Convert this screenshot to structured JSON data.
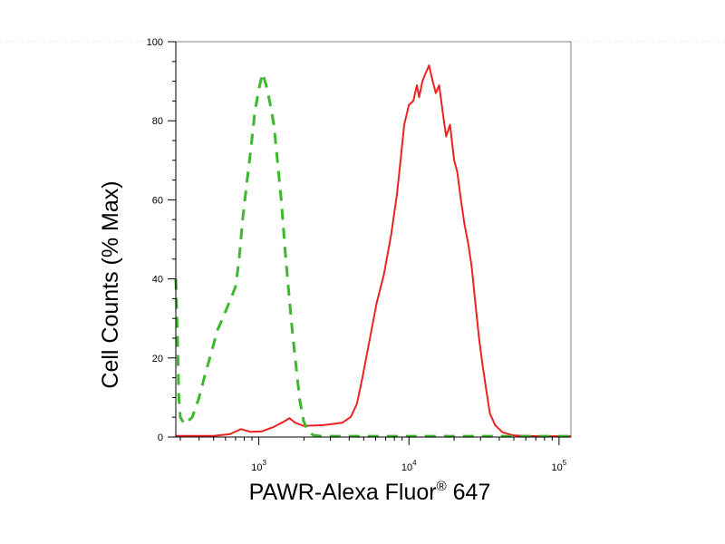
{
  "chart_data": {
    "type": "line",
    "xlabel": {
      "main": "PAWR-Alexa Fluor",
      "sup": "®",
      "tail": " 647"
    },
    "ylabel": "Cell Counts (% Max)",
    "x_scale": "log",
    "xlim": [
      280,
      120000
    ],
    "ylim": [
      0,
      100
    ],
    "y_ticks": [
      0,
      20,
      40,
      60,
      80,
      100
    ],
    "y_tick_labels": [
      "0",
      "20",
      "40",
      "60",
      "80",
      "100"
    ],
    "x_major_ticks": [
      {
        "value": 1000,
        "base": "10",
        "exp": "3"
      },
      {
        "value": 10000,
        "base": "10",
        "exp": "4"
      },
      {
        "value": 100000,
        "base": "10",
        "exp": "5"
      }
    ],
    "series": [
      {
        "color": "#ee2222",
        "style": "solid",
        "points": [
          [
            280,
            0.3
          ],
          [
            500,
            0.3
          ],
          [
            640,
            0.7
          ],
          [
            760,
            2.0
          ],
          [
            880,
            1.3
          ],
          [
            1040,
            1.4
          ],
          [
            1250,
            2.5
          ],
          [
            1470,
            3.9
          ],
          [
            1600,
            4.8
          ],
          [
            1750,
            3.6
          ],
          [
            2000,
            2.8
          ],
          [
            2700,
            3.0
          ],
          [
            3600,
            3.6
          ],
          [
            4100,
            5.1
          ],
          [
            4500,
            8.4
          ],
          [
            4900,
            15.0
          ],
          [
            5500,
            25.0
          ],
          [
            6100,
            34.0
          ],
          [
            6800,
            41.0
          ],
          [
            7600,
            51.0
          ],
          [
            8300,
            61.0
          ],
          [
            8800,
            70.0
          ],
          [
            9300,
            79.0
          ],
          [
            10000,
            84.0
          ],
          [
            10700,
            85.0
          ],
          [
            11300,
            89.0
          ],
          [
            11700,
            86.0
          ],
          [
            12300,
            90.0
          ],
          [
            12900,
            92.0
          ],
          [
            13600,
            94.0
          ],
          [
            14400,
            90.0
          ],
          [
            15100,
            87.0
          ],
          [
            15900,
            89.0
          ],
          [
            16800,
            82.0
          ],
          [
            17700,
            76.0
          ],
          [
            18800,
            79.0
          ],
          [
            20000,
            70.0
          ],
          [
            21000,
            67.0
          ],
          [
            22200,
            60.0
          ],
          [
            23400,
            54.0
          ],
          [
            24800,
            49.0
          ],
          [
            26200,
            43.0
          ],
          [
            27700,
            34.0
          ],
          [
            29300,
            25.0
          ],
          [
            31000,
            18.0
          ],
          [
            32700,
            12.0
          ],
          [
            34600,
            6.0
          ],
          [
            37500,
            3.0
          ],
          [
            42000,
            1.2
          ],
          [
            50000,
            0.4
          ],
          [
            70000,
            0.2
          ],
          [
            120000,
            0.2
          ]
        ]
      },
      {
        "color": "#3cb82c",
        "style": "dashed",
        "points": [
          [
            280,
            40.0
          ],
          [
            287,
            26.0
          ],
          [
            293,
            10.0
          ],
          [
            300,
            5.0
          ],
          [
            320,
            3.2
          ],
          [
            360,
            5.0
          ],
          [
            400,
            10.0
          ],
          [
            440,
            16.0
          ],
          [
            480,
            21.0
          ],
          [
            530,
            27.0
          ],
          [
            590,
            31.0
          ],
          [
            650,
            35.0
          ],
          [
            700,
            38.0
          ],
          [
            740,
            45.0
          ],
          [
            780,
            55.0
          ],
          [
            830,
            64.0
          ],
          [
            880,
            72.0
          ],
          [
            940,
            82.0
          ],
          [
            1000,
            88.0
          ],
          [
            1060,
            92.0
          ],
          [
            1120,
            89.0
          ],
          [
            1180,
            85.0
          ],
          [
            1260,
            79.0
          ],
          [
            1330,
            70.0
          ],
          [
            1410,
            60.0
          ],
          [
            1500,
            47.0
          ],
          [
            1580,
            37.0
          ],
          [
            1680,
            26.0
          ],
          [
            1780,
            17.0
          ],
          [
            1880,
            9.0
          ],
          [
            1990,
            4.0
          ],
          [
            2120,
            1.5
          ],
          [
            2300,
            0.5
          ],
          [
            2600,
            0.2
          ],
          [
            120000,
            0.2
          ]
        ]
      }
    ]
  }
}
